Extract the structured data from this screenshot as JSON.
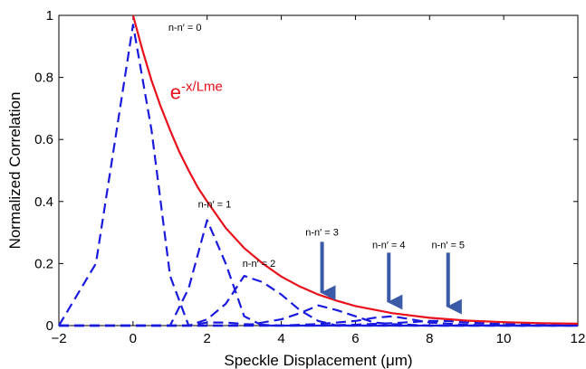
{
  "chart_data": {
    "type": "line",
    "xlabel": "Speckle Displacement (μm)",
    "ylabel": "Normalized Correlation",
    "xlim": [
      -2,
      12
    ],
    "ylim": [
      0,
      1
    ],
    "xticks": [
      -2,
      0,
      2,
      4,
      6,
      8,
      10,
      12
    ],
    "yticks": [
      0,
      0.2,
      0.4,
      0.6,
      0.8,
      1
    ],
    "xtick_labels": [
      "−2",
      "0",
      "2",
      "4",
      "6",
      "8",
      "10",
      "12"
    ],
    "ytick_labels": [
      "0",
      "0.2",
      "0.4",
      "0.6",
      "0.8",
      "1"
    ],
    "grid": false,
    "formula": {
      "base": "e",
      "exponent": "-x/Lme",
      "x": 1.0,
      "y": 0.73,
      "color": "#e8101a"
    },
    "series": [
      {
        "style": "solid",
        "color": "#e8101a",
        "x": [
          0,
          0.25,
          0.5,
          0.75,
          1,
          1.25,
          1.5,
          1.75,
          2,
          2.5,
          3,
          3.5,
          4,
          4.5,
          5,
          5.5,
          6,
          7,
          8,
          9,
          10,
          11,
          12
        ],
        "y": [
          1.0,
          0.89,
          0.79,
          0.705,
          0.63,
          0.56,
          0.5,
          0.445,
          0.4,
          0.315,
          0.25,
          0.2,
          0.158,
          0.126,
          0.1,
          0.08,
          0.063,
          0.04,
          0.025,
          0.016,
          0.011,
          0.008,
          0.006
        ]
      },
      {
        "style": "dashed",
        "color": "#1a1adf",
        "x": [
          -2,
          -1,
          0,
          0.5,
          1,
          1.5,
          2,
          2.5,
          3,
          4,
          5,
          6,
          8,
          10,
          12
        ],
        "y": [
          0.0,
          0.2,
          0.97,
          0.63,
          0.16,
          0.0,
          0.01,
          0.01,
          0.005,
          0.0,
          0.0,
          0.0,
          0.0,
          0.0,
          0.0
        ]
      },
      {
        "style": "dashed",
        "color": "#1a1adf",
        "x": [
          -2,
          0,
          1,
          1.5,
          2,
          2.5,
          3,
          3.5,
          4,
          5,
          6,
          8,
          10,
          12
        ],
        "y": [
          0.0,
          0.0,
          0.0,
          0.12,
          0.34,
          0.2,
          0.03,
          0.0,
          0.0,
          0.0,
          0.0,
          0.0,
          0.0,
          0.0
        ]
      },
      {
        "style": "dashed",
        "color": "#1a1adf",
        "x": [
          -2,
          0,
          1,
          1.5,
          2,
          2.5,
          3,
          3.5,
          4,
          4.5,
          5,
          5.5,
          6,
          8,
          10,
          12
        ],
        "y": [
          0.0,
          0.0,
          0.0,
          0.0,
          0.02,
          0.07,
          0.16,
          0.14,
          0.1,
          0.05,
          0.015,
          0.0,
          0.0,
          0.0,
          0.0,
          0.0
        ]
      },
      {
        "style": "dashed",
        "color": "#1a1adf",
        "x": [
          -2,
          0,
          2,
          3,
          4,
          4.5,
          5,
          5.5,
          6,
          6.5,
          7,
          8,
          10,
          12
        ],
        "y": [
          0.0,
          0.0,
          0.0,
          0.0,
          0.02,
          0.04,
          0.065,
          0.05,
          0.03,
          0.01,
          0.005,
          0.0,
          0.0,
          0.0
        ]
      },
      {
        "style": "dashed",
        "color": "#1a1adf",
        "x": [
          -2,
          0,
          4,
          5,
          6,
          6.5,
          7,
          7.5,
          8,
          9,
          10,
          12
        ],
        "y": [
          0.0,
          0.0,
          0.0,
          0.005,
          0.015,
          0.025,
          0.03,
          0.02,
          0.01,
          0.003,
          0.0,
          0.0
        ]
      },
      {
        "style": "dashed",
        "color": "#1a1adf",
        "x": [
          -2,
          0,
          5,
          6,
          7,
          8,
          8.5,
          9,
          10,
          11,
          12
        ],
        "y": [
          0.0,
          0.0,
          0.0,
          0.003,
          0.008,
          0.015,
          0.015,
          0.01,
          0.005,
          0.002,
          0.0
        ]
      }
    ],
    "annotations": [
      {
        "text": "n-n′ = 0",
        "x": 1.4,
        "y": 0.95
      },
      {
        "text": "n-n′ = 1",
        "x": 2.2,
        "y": 0.38
      },
      {
        "text": "n-n′ = 2",
        "x": 3.4,
        "y": 0.19
      },
      {
        "text": "n-n′ = 3",
        "x": 5.1,
        "y": 0.29
      },
      {
        "text": "n-n′ = 4",
        "x": 6.9,
        "y": 0.25
      },
      {
        "text": "n-n′ = 5",
        "x": 8.5,
        "y": 0.25
      }
    ],
    "arrows": [
      {
        "x": 5.1,
        "y_from": 0.27,
        "y_to": 0.065,
        "color": "#3a5aa8"
      },
      {
        "x": 6.9,
        "y_from": 0.235,
        "y_to": 0.035,
        "color": "#3a5aa8"
      },
      {
        "x": 8.5,
        "y_from": 0.235,
        "y_to": 0.02,
        "color": "#3a5aa8"
      }
    ]
  }
}
